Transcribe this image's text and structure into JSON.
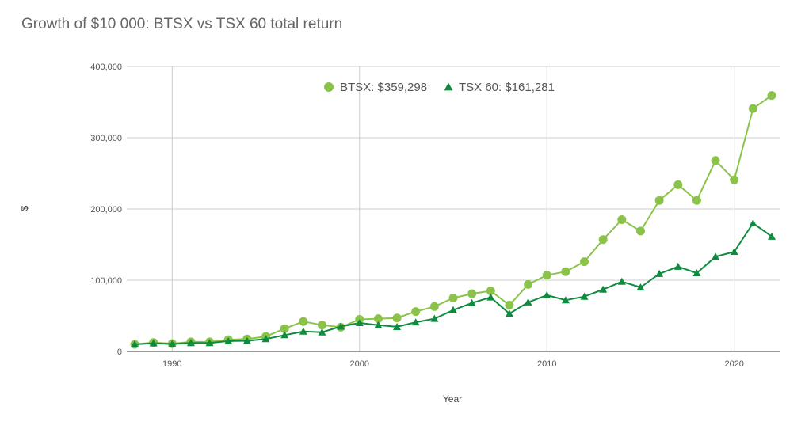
{
  "chart_data": {
    "type": "line",
    "title": "Growth of $10 000: BTSX vs TSX 60 total return",
    "xlabel": "Year",
    "ylabel": "$",
    "xlim": [
      1988,
      2022
    ],
    "ylim": [
      0,
      400000
    ],
    "x_ticks": [
      1990,
      2000,
      2010,
      2020
    ],
    "x_tick_labels": [
      "1990",
      "2000",
      "2010",
      "2020"
    ],
    "y_ticks": [
      0,
      100000,
      200000,
      300000,
      400000
    ],
    "y_tick_labels": [
      "0",
      "100,000",
      "200,000",
      "300,000",
      "400,000"
    ],
    "grid": true,
    "legend_position": "top-center",
    "x": [
      1988,
      1989,
      1990,
      1991,
      1992,
      1993,
      1994,
      1995,
      1996,
      1997,
      1998,
      1999,
      2000,
      2001,
      2002,
      2003,
      2004,
      2005,
      2006,
      2007,
      2008,
      2009,
      2010,
      2011,
      2012,
      2013,
      2014,
      2015,
      2016,
      2017,
      2018,
      2019,
      2020,
      2021,
      2022
    ],
    "series": [
      {
        "name": "BTSX: $359,298",
        "color": "#8bc34a",
        "marker": "circle",
        "values": [
          10000,
          12500,
          11000,
          13500,
          13500,
          16500,
          17500,
          21000,
          32000,
          42000,
          37000,
          34000,
          45000,
          46000,
          47000,
          56000,
          63000,
          75000,
          81000,
          85000,
          65000,
          94000,
          107000,
          112000,
          126000,
          157000,
          185000,
          169000,
          212000,
          234000,
          212000,
          268000,
          241000,
          341000,
          359298
        ]
      },
      {
        "name": "TSX 60: $161,281",
        "color": "#0f8b3f",
        "marker": "triangle",
        "values": [
          10000,
          11500,
          10500,
          12000,
          12000,
          14500,
          15000,
          17500,
          23000,
          28000,
          27000,
          35000,
          40000,
          37000,
          34500,
          41000,
          46000,
          58000,
          68000,
          76000,
          53000,
          69000,
          79000,
          72000,
          77000,
          87000,
          98000,
          90000,
          109000,
          119000,
          110000,
          133000,
          140000,
          180000,
          161281
        ]
      }
    ]
  }
}
